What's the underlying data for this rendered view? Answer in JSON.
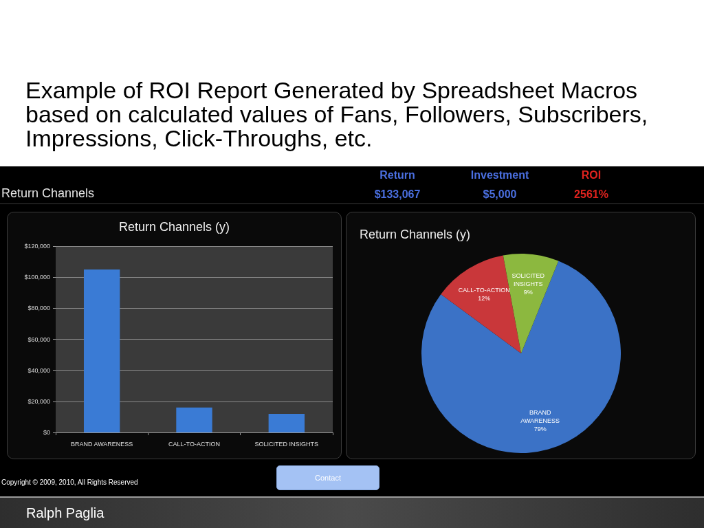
{
  "chart_data": [
    {
      "type": "other",
      "title": "Example of ROI Report Generated by Spreadsheet Macros based on calculated values of Fans, Followers, Subscribers, Impressions, Click-Throughs, etc.",
      "annotations": [
        "Return Channels",
        "Return",
        "$133,067",
        "Investment",
        "$5,000",
        "ROI",
        "2561%"
      ]
    },
    {
      "type": "bar",
      "title": "Return Channels (y)",
      "categories": [
        "BRAND AWARENESS",
        "CALL-TO-ACTION",
        "SOLICITED INSIGHTS"
      ],
      "values": [
        105000,
        16000,
        12000
      ],
      "color": "#3a7bd5",
      "ylim": [
        0,
        120000
      ],
      "yticks": [
        {
          "value": 0,
          "label": "$0"
        },
        {
          "value": 20000,
          "label": "$20,000"
        },
        {
          "value": 40000,
          "label": "$40,000"
        },
        {
          "value": 60000,
          "label": "$60,000"
        },
        {
          "value": 80000,
          "label": "$80,000"
        },
        {
          "value": 100000,
          "label": "$100,000"
        },
        {
          "value": 120000,
          "label": "$120,000"
        }
      ],
      "grid": "y"
    },
    {
      "type": "pie",
      "title": "Return Channels (y)",
      "categories": [
        "BRAND AWARENESS",
        "CALL-TO-ACTION",
        "SOLICITED INSIGHTS"
      ],
      "values": [
        79,
        12,
        9
      ],
      "colors": [
        "#3b72c6",
        "#c9373a",
        "#8cb83f"
      ],
      "value_labels": [
        "79%",
        "12%",
        "9%"
      ]
    },
    {
      "type": "other",
      "annotations": [
        "Copyright © 2009, 2010, All Rights Reserved",
        "Contact",
        "Ralph Paglia"
      ]
    }
  ]
}
